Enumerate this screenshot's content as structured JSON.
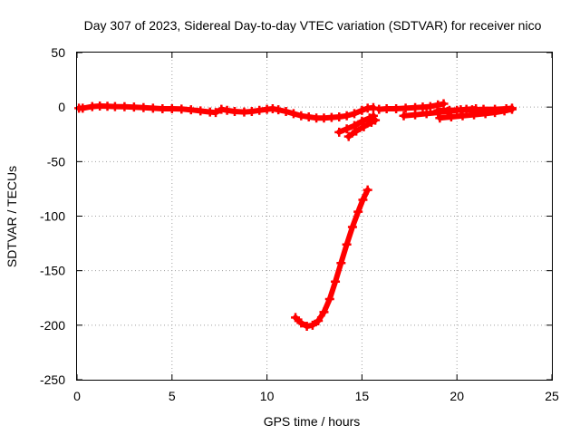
{
  "chart_data": {
    "type": "scatter",
    "title": "Day 307 of 2023, Sidereal Day-to-day VTEC variation (SDTVAR) for receiver nico",
    "xlabel": "GPS time / hours",
    "ylabel": "SDTVAR / TECUs",
    "xlim": [
      0,
      25
    ],
    "ylim": [
      -250,
      50
    ],
    "xticks": [
      0,
      5,
      10,
      15,
      20,
      25
    ],
    "yticks": [
      50,
      0,
      -50,
      -100,
      -150,
      -200,
      -250
    ],
    "grid": true,
    "series": [
      {
        "color": "#ff0000",
        "marker": "plus",
        "segments": [
          [
            [
              0.1,
              -1
            ],
            [
              0.3,
              -1
            ],
            [
              0.8,
              0.5
            ],
            [
              1.2,
              1
            ],
            [
              1.6,
              0.8
            ],
            [
              2.0,
              0.5
            ],
            [
              2.5,
              0.3
            ],
            [
              3.0,
              0
            ],
            [
              3.5,
              -0.5
            ],
            [
              4.0,
              -1
            ],
            [
              4.5,
              -1.5
            ],
            [
              5.0,
              -1.5
            ],
            [
              5.5,
              -1.8
            ],
            [
              6.0,
              -2.5
            ],
            [
              6.5,
              -3.5
            ],
            [
              7.0,
              -4.5
            ],
            [
              7.3,
              -5
            ],
            [
              7.6,
              -2
            ],
            [
              7.9,
              -3
            ],
            [
              8.3,
              -4
            ],
            [
              8.8,
              -4.5
            ],
            [
              9.2,
              -4
            ],
            [
              9.6,
              -3
            ],
            [
              10.0,
              -2
            ],
            [
              10.3,
              -1.5
            ],
            [
              10.6,
              -2.5
            ],
            [
              11.0,
              -4
            ],
            [
              11.4,
              -6
            ],
            [
              11.8,
              -8
            ],
            [
              12.2,
              -9
            ],
            [
              12.6,
              -10
            ],
            [
              13.0,
              -10
            ],
            [
              13.4,
              -9.5
            ],
            [
              13.8,
              -9
            ],
            [
              14.2,
              -8
            ],
            [
              14.6,
              -6
            ],
            [
              15.0,
              -3
            ],
            [
              15.3,
              -1
            ],
            [
              15.6,
              -0.5
            ]
          ],
          [
            [
              13.8,
              -23
            ],
            [
              14.2,
              -20
            ],
            [
              14.6,
              -17
            ],
            [
              15.0,
              -13
            ],
            [
              15.4,
              -10
            ],
            [
              15.6,
              -8
            ]
          ],
          [
            [
              14.3,
              -27
            ],
            [
              14.7,
              -22
            ],
            [
              15.1,
              -18
            ],
            [
              15.5,
              -14
            ],
            [
              15.7,
              -12
            ]
          ],
          [
            [
              15.9,
              -2
            ],
            [
              16.3,
              -1.5
            ],
            [
              16.8,
              -1.5
            ],
            [
              17.3,
              -1
            ],
            [
              17.8,
              -0.5
            ],
            [
              18.2,
              0
            ],
            [
              18.6,
              0.5
            ],
            [
              19.0,
              2
            ],
            [
              19.3,
              3
            ]
          ],
          [
            [
              17.2,
              -8
            ],
            [
              17.8,
              -7
            ],
            [
              18.4,
              -6
            ],
            [
              19.0,
              -5
            ],
            [
              19.5,
              -4
            ],
            [
              20.0,
              -3
            ],
            [
              20.5,
              -2
            ],
            [
              21.0,
              -1.5
            ]
          ],
          [
            [
              19.1,
              -10
            ],
            [
              19.7,
              -9
            ],
            [
              20.3,
              -8
            ],
            [
              20.9,
              -7
            ],
            [
              21.5,
              -6
            ],
            [
              22.0,
              -5
            ],
            [
              22.5,
              -3.5
            ],
            [
              22.9,
              -2
            ]
          ],
          [
            [
              19.0,
              -3
            ],
            [
              19.6,
              -3
            ],
            [
              20.2,
              -2.5
            ],
            [
              20.8,
              -2.5
            ],
            [
              21.4,
              -2
            ],
            [
              22.0,
              -2
            ],
            [
              22.6,
              -1.5
            ],
            [
              22.9,
              -1
            ]
          ],
          [
            [
              11.5,
              -193
            ],
            [
              11.8,
              -198
            ],
            [
              12.1,
              -201
            ],
            [
              12.4,
              -200
            ],
            [
              12.7,
              -196
            ],
            [
              13.0,
              -188
            ],
            [
              13.3,
              -176
            ],
            [
              13.6,
              -160
            ],
            [
              13.9,
              -143
            ],
            [
              14.2,
              -126
            ],
            [
              14.5,
              -110
            ],
            [
              14.8,
              -96
            ],
            [
              15.05,
              -85
            ],
            [
              15.3,
              -76
            ]
          ]
        ]
      }
    ]
  }
}
